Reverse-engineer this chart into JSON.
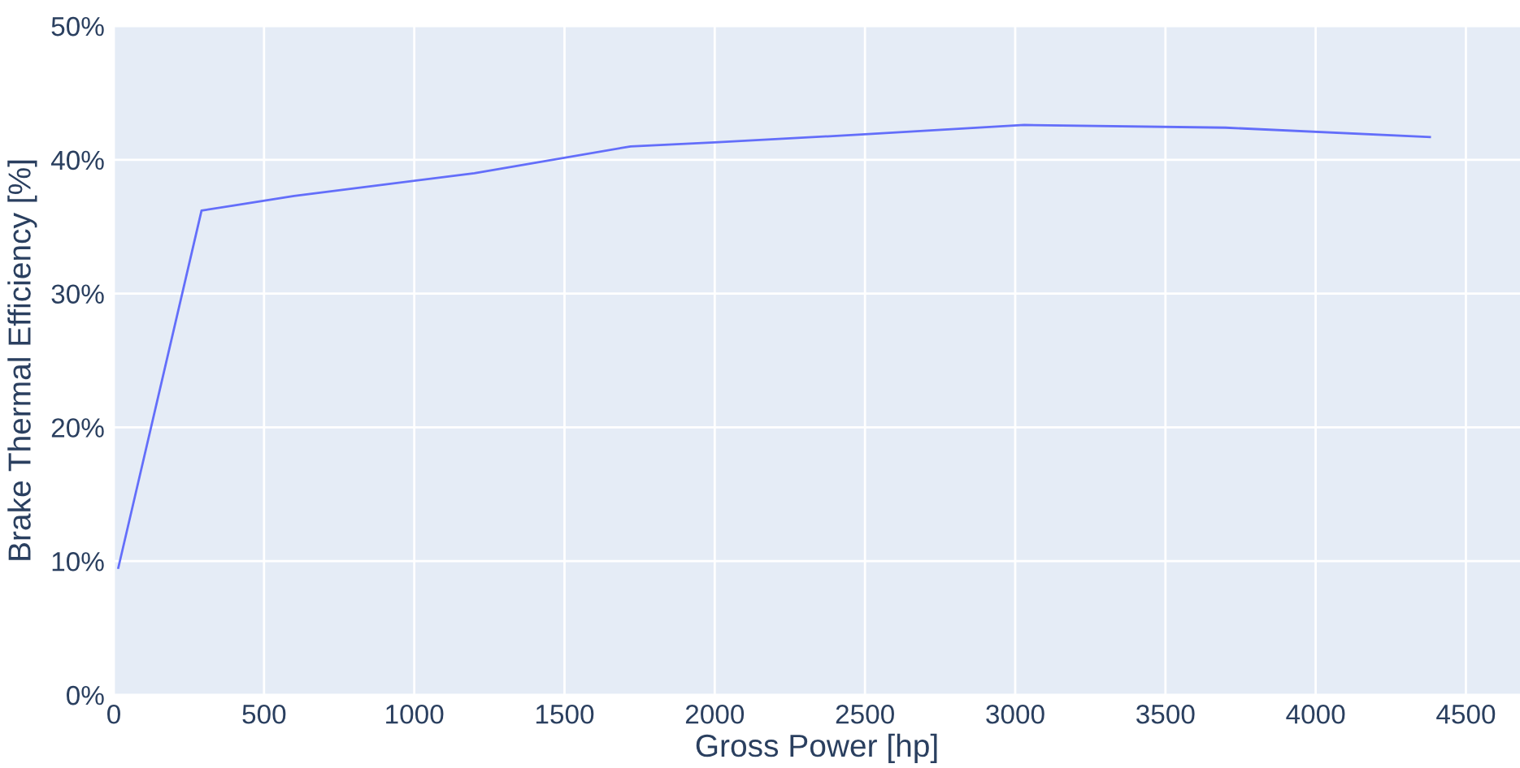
{
  "chart_data": {
    "type": "line",
    "xlabel": "Gross Power [hp]",
    "ylabel": "Brake Thermal Efficiency [%]",
    "x": [
      15,
      292,
      600,
      1200,
      1720,
      2000,
      2500,
      3030,
      3700,
      4380
    ],
    "series": [
      {
        "color": "#636efa",
        "values": [
          9.5,
          36.2,
          37.3,
          39.0,
          41.0,
          41.3,
          41.9,
          42.6,
          42.4,
          41.7
        ]
      }
    ],
    "xlim": [
      0,
      4680
    ],
    "xticks": [
      0,
      500,
      1000,
      1500,
      2000,
      2500,
      3000,
      3500,
      4000,
      4500
    ],
    "ylim": [
      0,
      50
    ],
    "yticks": [
      {
        "value": 0,
        "label": "0%"
      },
      {
        "value": 10,
        "label": "10%"
      },
      {
        "value": 20,
        "label": "20%"
      },
      {
        "value": 30,
        "label": "30%"
      },
      {
        "value": 40,
        "label": "40%"
      },
      {
        "value": 50,
        "label": "50%"
      }
    ],
    "grid": true
  }
}
